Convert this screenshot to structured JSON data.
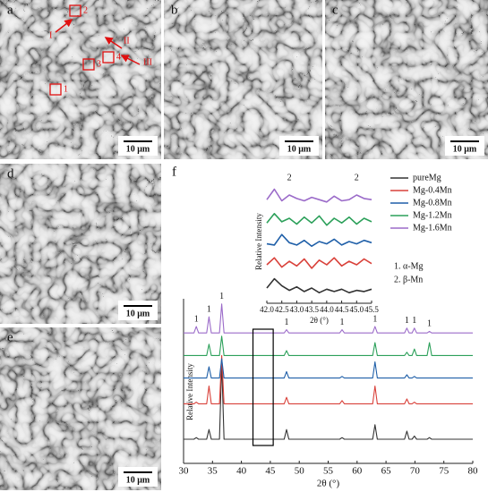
{
  "panels": [
    {
      "label": "a",
      "scale_bar": "10 μm",
      "markers": [
        "1",
        "2",
        "3",
        "4"
      ],
      "arrows": [
        "I",
        "II",
        "III"
      ]
    },
    {
      "label": "b",
      "scale_bar": "10 μm"
    },
    {
      "label": "c",
      "scale_bar": "10 μm"
    },
    {
      "label": "d",
      "scale_bar": "10 μm"
    },
    {
      "label": "e",
      "scale_bar": "10 μm"
    }
  ],
  "chart_panel_label": "f",
  "phase_legend": [
    "1.  α-Mg",
    "2.  β-Mn"
  ],
  "chart_data": [
    {
      "type": "line",
      "x_label": "2θ (°)",
      "y_label": "Relative Intensity",
      "xlim": [
        30,
        80
      ],
      "xticks": [
        30,
        35,
        40,
        45,
        50,
        55,
        60,
        65,
        70,
        75,
        80
      ],
      "ylim": [
        0,
        100
      ],
      "x": [
        30,
        31.8,
        32.2,
        32.6,
        34,
        34.4,
        34.8,
        36.2,
        36.6,
        37,
        47.4,
        47.8,
        48.2,
        57,
        57.4,
        57.8,
        62.7,
        63.1,
        63.5,
        68.2,
        68.6,
        69,
        69.5,
        69.9,
        70.3,
        72.1,
        72.5,
        72.9,
        80
      ],
      "series": [
        {
          "name": "pureMg",
          "color": "#333333",
          "values": [
            15,
            15,
            16,
            15,
            15,
            21,
            15,
            15,
            63,
            15,
            15,
            21,
            15,
            15,
            16,
            15,
            15,
            24,
            15,
            15,
            20,
            15,
            15,
            17,
            15,
            15,
            16,
            15,
            15
          ]
        },
        {
          "name": "Mg-0.4Mn",
          "color": "#d9413a",
          "values": [
            37,
            37,
            38,
            37,
            37,
            48,
            37,
            37,
            67,
            37,
            37,
            41,
            37,
            37,
            39,
            37,
            37,
            48,
            37,
            37,
            40,
            37,
            37,
            38,
            37,
            37,
            37,
            37,
            37
          ]
        },
        {
          "name": "Mg-0.8Mn",
          "color": "#1f5fa8",
          "values": [
            53,
            53,
            53,
            53,
            53,
            60,
            53,
            53,
            65,
            53,
            53,
            57,
            53,
            53,
            54,
            53,
            53,
            63,
            53,
            53,
            55,
            53,
            53,
            54,
            53,
            53,
            53,
            53,
            53
          ]
        },
        {
          "name": "Mg-1.2Mn",
          "color": "#2ca05a",
          "values": [
            67,
            67,
            67,
            67,
            67,
            74,
            67,
            67,
            79,
            67,
            67,
            70,
            67,
            67,
            67,
            67,
            67,
            75,
            67,
            67,
            69,
            67,
            67,
            71,
            67,
            67,
            75,
            67,
            67
          ]
        },
        {
          "name": "Mg-1.6Mn",
          "color": "#9b6bc9",
          "values": [
            81,
            81,
            85,
            81,
            81,
            91,
            81,
            81,
            99,
            81,
            81,
            83,
            81,
            81,
            83,
            81,
            81,
            85,
            81,
            81,
            84,
            81,
            81,
            84,
            81,
            81,
            82,
            81,
            81
          ]
        }
      ],
      "peak_labels": [
        {
          "x": 32.2,
          "label": "1"
        },
        {
          "x": 34.4,
          "label": "1"
        },
        {
          "x": 36.6,
          "label": "1"
        },
        {
          "x": 47.8,
          "label": "1"
        },
        {
          "x": 57.4,
          "label": "1"
        },
        {
          "x": 63.1,
          "label": "1"
        },
        {
          "x": 68.6,
          "label": "1"
        },
        {
          "x": 69.9,
          "label": "1"
        },
        {
          "x": 72.5,
          "label": "1"
        }
      ]
    },
    {
      "type": "line",
      "x_label": "2θ (°)",
      "y_label": "Relative Intensity",
      "xlim": [
        42,
        45.5
      ],
      "xticks": [
        {
          "value": 42,
          "label": "42.0"
        },
        42.5,
        {
          "value": 43,
          "label": "43.0"
        },
        43.5,
        {
          "value": 44,
          "label": "44.0"
        },
        44.5,
        {
          "value": 45,
          "label": "45.0"
        },
        45.5
      ],
      "ylim": [
        0,
        100
      ],
      "x": [
        42,
        42.25,
        42.5,
        42.75,
        43,
        43.25,
        43.5,
        43.75,
        44,
        44.25,
        44.5,
        44.75,
        45,
        45.25,
        45.5
      ],
      "series": [
        {
          "color": "#333333",
          "values": [
            10,
            18,
            12,
            8,
            11,
            7,
            10,
            6,
            9,
            7,
            9,
            6,
            8,
            7,
            9
          ]
        },
        {
          "color": "#d9413a",
          "values": [
            30,
            36,
            28,
            33,
            29,
            35,
            27,
            34,
            30,
            36,
            29,
            33,
            30,
            35,
            31
          ]
        },
        {
          "color": "#1f5fa8",
          "values": [
            48,
            47,
            56,
            49,
            47,
            51,
            46,
            50,
            48,
            52,
            47,
            50,
            48,
            51,
            49
          ]
        },
        {
          "color": "#2ca05a",
          "values": [
            66,
            74,
            67,
            70,
            65,
            71,
            66,
            72,
            64,
            70,
            66,
            71,
            65,
            70,
            67
          ]
        },
        {
          "color": "#9b6bc9",
          "values": [
            86,
            95,
            85,
            90,
            87,
            85,
            88,
            86,
            84,
            89,
            85,
            86,
            90,
            87,
            86
          ]
        }
      ],
      "annotations": [
        {
          "x": 42.75,
          "label": "2"
        },
        {
          "x": 45,
          "label": "2"
        }
      ]
    }
  ]
}
